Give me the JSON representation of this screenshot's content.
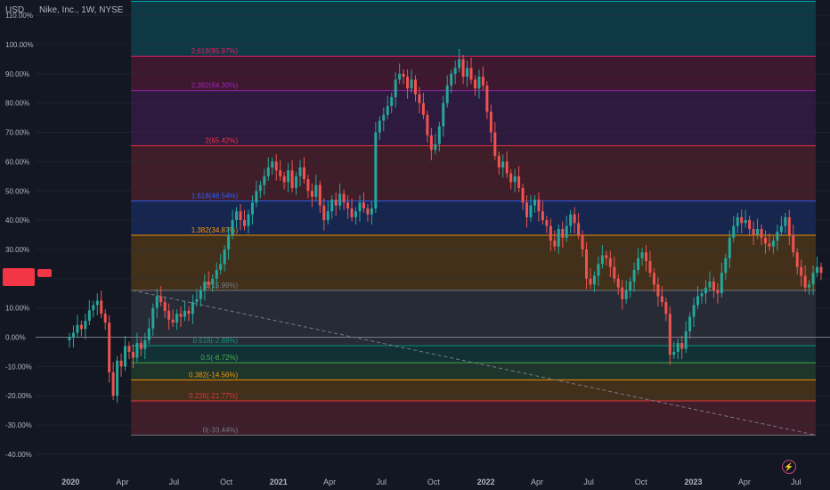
{
  "header": {
    "currency": "USD",
    "title": "Nike, Inc., 1W, NYSE"
  },
  "price_tag": {
    "line1": "",
    "line2": ""
  },
  "flag": {
    "label": ""
  },
  "bolt_icon": "lightning-icon",
  "colors": {
    "background": "#131722",
    "up": "#26a69a",
    "down": "#ef5350",
    "zero_line": "#787b86"
  },
  "chart_data": {
    "type": "candlestick",
    "y_unit": "percent",
    "ylim": [
      -43,
      111
    ],
    "y_ticks": [
      "110.00%",
      "100.00%",
      "90.00%",
      "80.00%",
      "70.00%",
      "60.00%",
      "50.00%",
      "40.00%",
      "30.00%",
      "20.00%",
      "10.00%",
      "0.00%",
      "-10.00%",
      "-20.00%",
      "-30.00%",
      "-40.00%"
    ],
    "x_ticks": [
      "2020",
      "Apr",
      "Jul",
      "Oct",
      "2021",
      "Apr",
      "Jul",
      "Oct",
      "2022",
      "Apr",
      "Jul",
      "Oct",
      "2023",
      "Apr",
      "Jul"
    ],
    "fibonacci_extension": [
      {
        "label": "0(-33.44%)",
        "ratio": 0,
        "value": -33.44,
        "color": "#787b86"
      },
      {
        "label": "0.236(-21.77%)",
        "ratio": 0.236,
        "value": -21.77,
        "color": "#f23645"
      },
      {
        "label": "0.382(-14.56%)",
        "ratio": 0.382,
        "value": -14.56,
        "color": "#ff9800"
      },
      {
        "label": "0.5(-8.72%)",
        "ratio": 0.5,
        "value": -8.72,
        "color": "#4caf50"
      },
      {
        "label": "0.618(-2.88%)",
        "ratio": 0.618,
        "value": -2.88,
        "color": "#089981"
      },
      {
        "label": "1(15.99%)",
        "ratio": 1,
        "value": 15.99,
        "color": "#787b86"
      },
      {
        "label": "1.382(34.87%)",
        "ratio": 1.382,
        "value": 34.87,
        "color": "#ff9800"
      },
      {
        "label": "1.618(46.54%)",
        "ratio": 1.618,
        "value": 46.54,
        "color": "#2962ff"
      },
      {
        "label": "2(65.42%)",
        "ratio": 2,
        "value": 65.42,
        "color": "#f23645"
      },
      {
        "label": "2.382(84.30%)",
        "ratio": 2.382,
        "value": 84.3,
        "color": "#9c27b0"
      },
      {
        "label": "2.618(95.97%)",
        "ratio": 2.618,
        "value": 95.97,
        "color": "#e91e63"
      },
      {
        "label": "",
        "ratio": 3.0,
        "value": 114.8,
        "color": "#00bcd4"
      }
    ],
    "trend_line": {
      "from": {
        "date": "2020-06-15",
        "value": 15.99
      },
      "to": {
        "date": "2023-07-20",
        "value": -33.44
      }
    },
    "series": [
      {
        "date": "2019-12-30",
        "c": 0.0
      },
      {
        "date": "2020-01-06",
        "c": 1.5
      },
      {
        "date": "2020-01-13",
        "c": 4.2
      },
      {
        "date": "2020-01-20",
        "c": 2.8
      },
      {
        "date": "2020-01-27",
        "c": 5.6
      },
      {
        "date": "2020-02-03",
        "c": 9.2
      },
      {
        "date": "2020-02-10",
        "c": 11.0
      },
      {
        "date": "2020-02-17",
        "c": 12.5
      },
      {
        "date": "2020-02-24",
        "c": 8.0
      },
      {
        "date": "2020-03-02",
        "c": 5.0
      },
      {
        "date": "2020-03-09",
        "c": -12.0
      },
      {
        "date": "2020-03-16",
        "c": -20.0
      },
      {
        "date": "2020-03-23",
        "c": -8.0
      },
      {
        "date": "2020-03-30",
        "c": -10.0
      },
      {
        "date": "2020-04-06",
        "c": -3.0
      },
      {
        "date": "2020-04-13",
        "c": -5.0
      },
      {
        "date": "2020-04-20",
        "c": -7.0
      },
      {
        "date": "2020-04-27",
        "c": -2.0
      },
      {
        "date": "2020-05-04",
        "c": -4.0
      },
      {
        "date": "2020-05-11",
        "c": -1.0
      },
      {
        "date": "2020-05-18",
        "c": 3.0
      },
      {
        "date": "2020-05-25",
        "c": 10.0
      },
      {
        "date": "2020-06-01",
        "c": 14.0
      },
      {
        "date": "2020-06-08",
        "c": 12.0
      },
      {
        "date": "2020-06-15",
        "c": 9.0
      },
      {
        "date": "2020-06-22",
        "c": 6.0
      },
      {
        "date": "2020-06-29",
        "c": 5.0
      },
      {
        "date": "2020-07-06",
        "c": 8.0
      },
      {
        "date": "2020-07-13",
        "c": 7.0
      },
      {
        "date": "2020-07-20",
        "c": 9.0
      },
      {
        "date": "2020-07-27",
        "c": 8.0
      },
      {
        "date": "2020-08-03",
        "c": 12.0
      },
      {
        "date": "2020-08-10",
        "c": 13.0
      },
      {
        "date": "2020-08-17",
        "c": 16.0
      },
      {
        "date": "2020-08-24",
        "c": 19.0
      },
      {
        "date": "2020-08-31",
        "c": 18.0
      },
      {
        "date": "2020-09-07",
        "c": 20.0
      },
      {
        "date": "2020-09-14",
        "c": 23.0
      },
      {
        "date": "2020-09-21",
        "c": 25.0
      },
      {
        "date": "2020-09-28",
        "c": 30.0
      },
      {
        "date": "2020-10-05",
        "c": 35.0
      },
      {
        "date": "2020-10-12",
        "c": 40.0
      },
      {
        "date": "2020-10-19",
        "c": 43.0
      },
      {
        "date": "2020-10-26",
        "c": 40.0
      },
      {
        "date": "2020-11-02",
        "c": 38.0
      },
      {
        "date": "2020-11-09",
        "c": 42.0
      },
      {
        "date": "2020-11-16",
        "c": 46.0
      },
      {
        "date": "2020-11-23",
        "c": 50.0
      },
      {
        "date": "2020-11-30",
        "c": 52.0
      },
      {
        "date": "2020-12-07",
        "c": 55.0
      },
      {
        "date": "2020-12-14",
        "c": 58.0
      },
      {
        "date": "2020-12-21",
        "c": 60.0
      },
      {
        "date": "2020-12-28",
        "c": 57.0
      },
      {
        "date": "2021-01-04",
        "c": 55.0
      },
      {
        "date": "2021-01-11",
        "c": 53.0
      },
      {
        "date": "2021-01-18",
        "c": 57.0
      },
      {
        "date": "2021-01-25",
        "c": 51.0
      },
      {
        "date": "2021-02-01",
        "c": 55.0
      },
      {
        "date": "2021-02-08",
        "c": 58.0
      },
      {
        "date": "2021-02-15",
        "c": 54.0
      },
      {
        "date": "2021-02-22",
        "c": 50.0
      },
      {
        "date": "2021-03-01",
        "c": 48.0
      },
      {
        "date": "2021-03-08",
        "c": 52.0
      },
      {
        "date": "2021-03-15",
        "c": 45.0
      },
      {
        "date": "2021-03-22",
        "c": 40.0
      },
      {
        "date": "2021-03-29",
        "c": 43.0
      },
      {
        "date": "2021-04-05",
        "c": 47.0
      },
      {
        "date": "2021-04-12",
        "c": 45.0
      },
      {
        "date": "2021-04-19",
        "c": 49.0
      },
      {
        "date": "2021-04-26",
        "c": 46.0
      },
      {
        "date": "2021-05-03",
        "c": 44.0
      },
      {
        "date": "2021-05-10",
        "c": 41.0
      },
      {
        "date": "2021-05-17",
        "c": 43.0
      },
      {
        "date": "2021-05-24",
        "c": 46.0
      },
      {
        "date": "2021-05-31",
        "c": 44.0
      },
      {
        "date": "2021-06-07",
        "c": 42.0
      },
      {
        "date": "2021-06-14",
        "c": 44.0
      },
      {
        "date": "2021-06-21",
        "c": 70.0
      },
      {
        "date": "2021-06-28",
        "c": 74.0
      },
      {
        "date": "2021-07-05",
        "c": 76.0
      },
      {
        "date": "2021-07-12",
        "c": 79.0
      },
      {
        "date": "2021-07-19",
        "c": 82.0
      },
      {
        "date": "2021-07-26",
        "c": 88.0
      },
      {
        "date": "2021-08-02",
        "c": 90.0
      },
      {
        "date": "2021-08-09",
        "c": 89.0
      },
      {
        "date": "2021-08-16",
        "c": 85.0
      },
      {
        "date": "2021-08-23",
        "c": 88.0
      },
      {
        "date": "2021-08-30",
        "c": 83.0
      },
      {
        "date": "2021-09-06",
        "c": 80.0
      },
      {
        "date": "2021-09-13",
        "c": 76.0
      },
      {
        "date": "2021-09-20",
        "c": 69.0
      },
      {
        "date": "2021-09-27",
        "c": 64.0
      },
      {
        "date": "2021-10-04",
        "c": 66.0
      },
      {
        "date": "2021-10-11",
        "c": 72.0
      },
      {
        "date": "2021-10-18",
        "c": 80.0
      },
      {
        "date": "2021-10-25",
        "c": 86.0
      },
      {
        "date": "2021-11-01",
        "c": 90.0
      },
      {
        "date": "2021-11-08",
        "c": 92.0
      },
      {
        "date": "2021-11-15",
        "c": 95.0
      },
      {
        "date": "2021-11-22",
        "c": 89.0
      },
      {
        "date": "2021-11-29",
        "c": 92.0
      },
      {
        "date": "2021-12-06",
        "c": 88.0
      },
      {
        "date": "2021-12-13",
        "c": 85.0
      },
      {
        "date": "2021-12-20",
        "c": 89.0
      },
      {
        "date": "2021-12-27",
        "c": 86.0
      },
      {
        "date": "2022-01-03",
        "c": 77.0
      },
      {
        "date": "2022-01-10",
        "c": 70.0
      },
      {
        "date": "2022-01-17",
        "c": 62.0
      },
      {
        "date": "2022-01-24",
        "c": 58.0
      },
      {
        "date": "2022-01-31",
        "c": 60.0
      },
      {
        "date": "2022-02-07",
        "c": 56.0
      },
      {
        "date": "2022-02-14",
        "c": 53.0
      },
      {
        "date": "2022-02-21",
        "c": 55.0
      },
      {
        "date": "2022-02-28",
        "c": 51.0
      },
      {
        "date": "2022-03-07",
        "c": 46.0
      },
      {
        "date": "2022-03-14",
        "c": 41.0
      },
      {
        "date": "2022-03-21",
        "c": 45.0
      },
      {
        "date": "2022-03-28",
        "c": 47.0
      },
      {
        "date": "2022-04-04",
        "c": 43.0
      },
      {
        "date": "2022-04-11",
        "c": 40.0
      },
      {
        "date": "2022-04-18",
        "c": 38.0
      },
      {
        "date": "2022-04-25",
        "c": 33.0
      },
      {
        "date": "2022-05-02",
        "c": 31.0
      },
      {
        "date": "2022-05-09",
        "c": 37.0
      },
      {
        "date": "2022-05-16",
        "c": 34.0
      },
      {
        "date": "2022-05-23",
        "c": 38.0
      },
      {
        "date": "2022-05-30",
        "c": 42.0
      },
      {
        "date": "2022-06-06",
        "c": 39.0
      },
      {
        "date": "2022-06-13",
        "c": 35.0
      },
      {
        "date": "2022-06-20",
        "c": 30.0
      },
      {
        "date": "2022-06-27",
        "c": 20.0
      },
      {
        "date": "2022-07-04",
        "c": 18.0
      },
      {
        "date": "2022-07-11",
        "c": 21.0
      },
      {
        "date": "2022-07-18",
        "c": 25.0
      },
      {
        "date": "2022-07-25",
        "c": 28.0
      },
      {
        "date": "2022-08-01",
        "c": 27.0
      },
      {
        "date": "2022-08-08",
        "c": 24.0
      },
      {
        "date": "2022-08-15",
        "c": 20.0
      },
      {
        "date": "2022-08-22",
        "c": 17.0
      },
      {
        "date": "2022-08-29",
        "c": 13.0
      },
      {
        "date": "2022-09-05",
        "c": 16.0
      },
      {
        "date": "2022-09-12",
        "c": 19.0
      },
      {
        "date": "2022-09-19",
        "c": 23.0
      },
      {
        "date": "2022-09-26",
        "c": 27.0
      },
      {
        "date": "2022-10-03",
        "c": 29.0
      },
      {
        "date": "2022-10-10",
        "c": 26.0
      },
      {
        "date": "2022-10-17",
        "c": 22.0
      },
      {
        "date": "2022-10-24",
        "c": 18.0
      },
      {
        "date": "2022-10-31",
        "c": 14.0
      },
      {
        "date": "2022-11-07",
        "c": 12.0
      },
      {
        "date": "2022-11-14",
        "c": 8.0
      },
      {
        "date": "2022-11-21",
        "c": -6.0
      },
      {
        "date": "2022-11-28",
        "c": -5.0
      },
      {
        "date": "2022-12-05",
        "c": -2.0
      },
      {
        "date": "2022-12-12",
        "c": -4.0
      },
      {
        "date": "2022-12-19",
        "c": 2.0
      },
      {
        "date": "2022-12-26",
        "c": 7.0
      },
      {
        "date": "2023-01-02",
        "c": 11.0
      },
      {
        "date": "2023-01-09",
        "c": 14.0
      },
      {
        "date": "2023-01-16",
        "c": 15.0
      },
      {
        "date": "2023-01-23",
        "c": 17.0
      },
      {
        "date": "2023-01-30",
        "c": 19.0
      },
      {
        "date": "2023-02-06",
        "c": 16.0
      },
      {
        "date": "2023-02-13",
        "c": 15.0
      },
      {
        "date": "2023-02-20",
        "c": 22.0
      },
      {
        "date": "2023-02-27",
        "c": 27.0
      },
      {
        "date": "2023-03-06",
        "c": 34.0
      },
      {
        "date": "2023-03-13",
        "c": 38.0
      },
      {
        "date": "2023-03-20",
        "c": 41.0
      },
      {
        "date": "2023-03-27",
        "c": 39.0
      },
      {
        "date": "2023-04-03",
        "c": 40.0
      },
      {
        "date": "2023-04-10",
        "c": 37.0
      },
      {
        "date": "2023-04-17",
        "c": 35.0
      },
      {
        "date": "2023-04-24",
        "c": 37.0
      },
      {
        "date": "2023-05-01",
        "c": 34.0
      },
      {
        "date": "2023-05-08",
        "c": 32.0
      },
      {
        "date": "2023-05-15",
        "c": 31.0
      },
      {
        "date": "2023-05-22",
        "c": 33.0
      },
      {
        "date": "2023-05-29",
        "c": 36.0
      },
      {
        "date": "2023-06-05",
        "c": 38.0
      },
      {
        "date": "2023-06-12",
        "c": 41.0
      },
      {
        "date": "2023-06-19",
        "c": 35.0
      },
      {
        "date": "2023-06-26",
        "c": 29.0
      },
      {
        "date": "2023-07-03",
        "c": 24.0
      },
      {
        "date": "2023-07-10",
        "c": 21.0
      },
      {
        "date": "2023-07-17",
        "c": 17.0
      },
      {
        "date": "2023-07-24",
        "c": 18.0
      },
      {
        "date": "2023-07-31",
        "c": 22.0
      },
      {
        "date": "2023-08-07",
        "c": 24.0
      },
      {
        "date": "2023-08-14",
        "c": 22.0
      }
    ]
  }
}
